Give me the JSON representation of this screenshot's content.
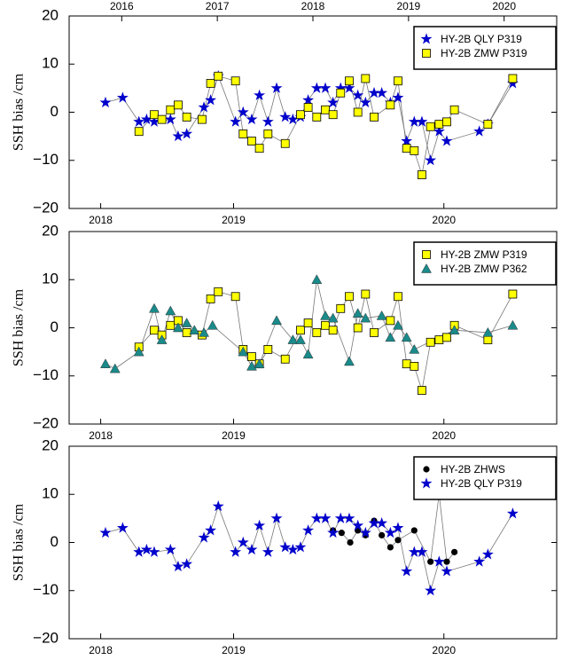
{
  "chart_data": [
    {
      "type": "line",
      "ylabel": "SSH bias /cm",
      "xlim": [
        2015.45,
        2020.55
      ],
      "ylim": [
        -20,
        20
      ],
      "yticks": [
        20,
        10,
        0,
        {
          "value": -10,
          "label": "−10"
        },
        {
          "value": -20,
          "label": "−20"
        }
      ],
      "xticks": [
        {
          "value": 2015.78,
          "label": "2018"
        },
        {
          "value": 2017.17,
          "label": "2019"
        },
        {
          "value": 2019.37,
          "label": "2020"
        }
      ],
      "x2ticks": [
        2016,
        2017,
        2018,
        2019,
        2020
      ],
      "legend": "top-right",
      "grid": false,
      "line_color": "#777777",
      "series": [
        {
          "name": "HY-2B QLY P319",
          "color": "#0000cc",
          "marker": "star",
          "x": [
            2015.83,
            2016.01,
            2016.18,
            2016.26,
            2016.34,
            2016.51,
            2016.59,
            2016.68,
            2016.86,
            2016.93,
            2017.01,
            2017.19,
            2017.27,
            2017.36,
            2017.44,
            2017.53,
            2017.62,
            2017.71,
            2017.79,
            2017.87,
            2017.95,
            2018.04,
            2018.13,
            2018.21,
            2018.29,
            2018.38,
            2018.47,
            2018.55,
            2018.64,
            2018.72,
            2018.81,
            2018.89,
            2018.98,
            2019.06,
            2019.14,
            2019.23,
            2019.32,
            2019.4,
            2019.74,
            2019.83,
            2020.09
          ],
          "values": [
            2,
            3,
            -2,
            -1.5,
            -2,
            -1.5,
            -5,
            -4.5,
            1,
            2.5,
            7.5,
            -2,
            0,
            -1.5,
            3.5,
            -2,
            5,
            -1,
            -1.5,
            -1,
            2.5,
            5,
            5,
            2,
            5,
            5,
            3.5,
            2,
            4,
            4,
            2,
            3,
            -6,
            -2,
            -2,
            -10,
            -4,
            -6,
            -4,
            -2.5,
            6
          ]
        },
        {
          "name": "HY-2B ZMW P319",
          "color": "#ffff00",
          "marker": "square",
          "x": [
            2016.18,
            2016.34,
            2016.42,
            2016.51,
            2016.59,
            2016.68,
            2016.84,
            2016.93,
            2017.01,
            2017.19,
            2017.27,
            2017.36,
            2017.44,
            2017.53,
            2017.71,
            2017.87,
            2017.95,
            2018.04,
            2018.13,
            2018.21,
            2018.29,
            2018.38,
            2018.47,
            2018.55,
            2018.64,
            2018.81,
            2018.89,
            2018.98,
            2019.06,
            2019.14,
            2019.23,
            2019.32,
            2019.4,
            2019.48,
            2019.83,
            2020.09
          ],
          "values": [
            -4,
            -0.5,
            -1.5,
            0.5,
            1.5,
            -1,
            -1.5,
            6,
            7.5,
            6.5,
            -4.5,
            -6,
            -7.5,
            -4.5,
            -6.5,
            -0.5,
            1,
            -1,
            0.5,
            -0.5,
            4,
            6.5,
            0,
            7,
            -1,
            1.5,
            6.5,
            -7.5,
            -8,
            -13,
            -3,
            -2.5,
            -2,
            0.5,
            -2.5,
            7
          ]
        }
      ]
    },
    {
      "type": "line",
      "ylabel": "SSH bias /cm",
      "xlim": [
        2015.45,
        2020.55
      ],
      "ylim": [
        -20,
        20
      ],
      "yticks": [
        20,
        10,
        0,
        {
          "value": -10,
          "label": "−10"
        },
        {
          "value": -20,
          "label": "−20"
        }
      ],
      "xticks": [
        {
          "value": 2015.78,
          "label": "2018"
        },
        {
          "value": 2017.17,
          "label": "2019"
        },
        {
          "value": 2019.37,
          "label": "2020"
        }
      ],
      "legend": "top-right",
      "grid": false,
      "line_color": "#777777",
      "series": [
        {
          "name": "HY-2B ZMW P319",
          "color": "#ffff00",
          "marker": "square",
          "x": [
            2016.18,
            2016.34,
            2016.42,
            2016.51,
            2016.59,
            2016.68,
            2016.84,
            2016.93,
            2017.01,
            2017.19,
            2017.27,
            2017.36,
            2017.44,
            2017.53,
            2017.71,
            2017.87,
            2017.95,
            2018.04,
            2018.13,
            2018.21,
            2018.29,
            2018.38,
            2018.47,
            2018.55,
            2018.64,
            2018.81,
            2018.89,
            2018.98,
            2019.06,
            2019.14,
            2019.23,
            2019.32,
            2019.4,
            2019.48,
            2019.83,
            2020.09
          ],
          "values": [
            -4,
            -0.5,
            -1.5,
            0.5,
            1.5,
            -1,
            -1.5,
            6,
            7.5,
            6.5,
            -4.5,
            -6,
            -7.5,
            -4.5,
            -6.5,
            -0.5,
            1,
            -1,
            0.5,
            -0.5,
            4,
            6.5,
            0,
            7,
            -1,
            1.5,
            6.5,
            -7.5,
            -8,
            -13,
            -3,
            -2.5,
            -2,
            0.5,
            -2.5,
            7
          ]
        },
        {
          "name": "HY-2B ZMW P362",
          "color": "#1a8a8a",
          "marker": "triangle",
          "x": [
            2015.83,
            2015.93,
            2016.18,
            2016.34,
            2016.42,
            2016.51,
            2016.59,
            2016.68,
            2016.76,
            2016.86,
            2016.95,
            2017.27,
            2017.36,
            2017.44,
            2017.62,
            2017.79,
            2017.87,
            2017.95,
            2018.04,
            2018.13,
            2018.21,
            2018.38,
            2018.47,
            2018.55,
            2018.72,
            2018.81,
            2018.89,
            2018.98,
            2019.06,
            2019.48,
            2019.83,
            2020.09
          ],
          "values": [
            -7.5,
            -8.5,
            -5,
            4,
            -2.5,
            3.5,
            0,
            1,
            -0.5,
            -1,
            0.5,
            -5,
            -8,
            -7.5,
            1.5,
            -2.5,
            -2.5,
            -5.5,
            10,
            2.5,
            2,
            -7,
            3,
            2,
            2.5,
            -2,
            0.5,
            -2,
            -4.5,
            -0.5,
            -1,
            0.5
          ]
        }
      ]
    },
    {
      "type": "line",
      "ylabel": "SSH bias /cm",
      "xlim": [
        2015.45,
        2020.55
      ],
      "ylim": [
        -20,
        20
      ],
      "yticks": [
        20,
        10,
        0,
        {
          "value": -10,
          "label": "−10"
        },
        {
          "value": -20,
          "label": "−20"
        }
      ],
      "xticks": [
        {
          "value": 2015.78,
          "label": "2018"
        },
        {
          "value": 2017.17,
          "label": "2019"
        },
        {
          "value": 2019.37,
          "label": "2020"
        }
      ],
      "legend": "top-right",
      "grid": false,
      "line_color": "#777777",
      "series": [
        {
          "name": "HY-2B ZHWS",
          "color": "#000000",
          "marker": "circle",
          "x": [
            2018.21,
            2018.3,
            2018.39,
            2018.47,
            2018.55,
            2018.64,
            2018.72,
            2018.81,
            2018.89,
            2019.06,
            2019.23,
            2019.32,
            2019.4,
            2019.48
          ],
          "values": [
            2.5,
            2,
            0,
            2.5,
            1.5,
            4.5,
            1.5,
            -1,
            0.5,
            2.5,
            -4,
            10,
            -4,
            -2
          ]
        },
        {
          "name": "HY-2B QLY P319",
          "color": "#0000cc",
          "marker": "star",
          "x": [
            2015.83,
            2016.01,
            2016.18,
            2016.26,
            2016.34,
            2016.51,
            2016.59,
            2016.68,
            2016.86,
            2016.93,
            2017.01,
            2017.19,
            2017.27,
            2017.36,
            2017.44,
            2017.53,
            2017.62,
            2017.71,
            2017.79,
            2017.87,
            2017.95,
            2018.04,
            2018.13,
            2018.21,
            2018.29,
            2018.38,
            2018.47,
            2018.55,
            2018.64,
            2018.72,
            2018.81,
            2018.89,
            2018.98,
            2019.06,
            2019.14,
            2019.23,
            2019.32,
            2019.4,
            2019.74,
            2019.83,
            2020.09
          ],
          "values": [
            2,
            3,
            -2,
            -1.5,
            -2,
            -1.5,
            -5,
            -4.5,
            1,
            2.5,
            7.5,
            -2,
            0,
            -1.5,
            3.5,
            -2,
            5,
            -1,
            -1.5,
            -1,
            2.5,
            5,
            5,
            2,
            5,
            5,
            3.5,
            2,
            4,
            4,
            2,
            3,
            -6,
            -2,
            -2,
            -10,
            -4,
            -6,
            -4,
            -2.5,
            6
          ]
        }
      ]
    }
  ]
}
